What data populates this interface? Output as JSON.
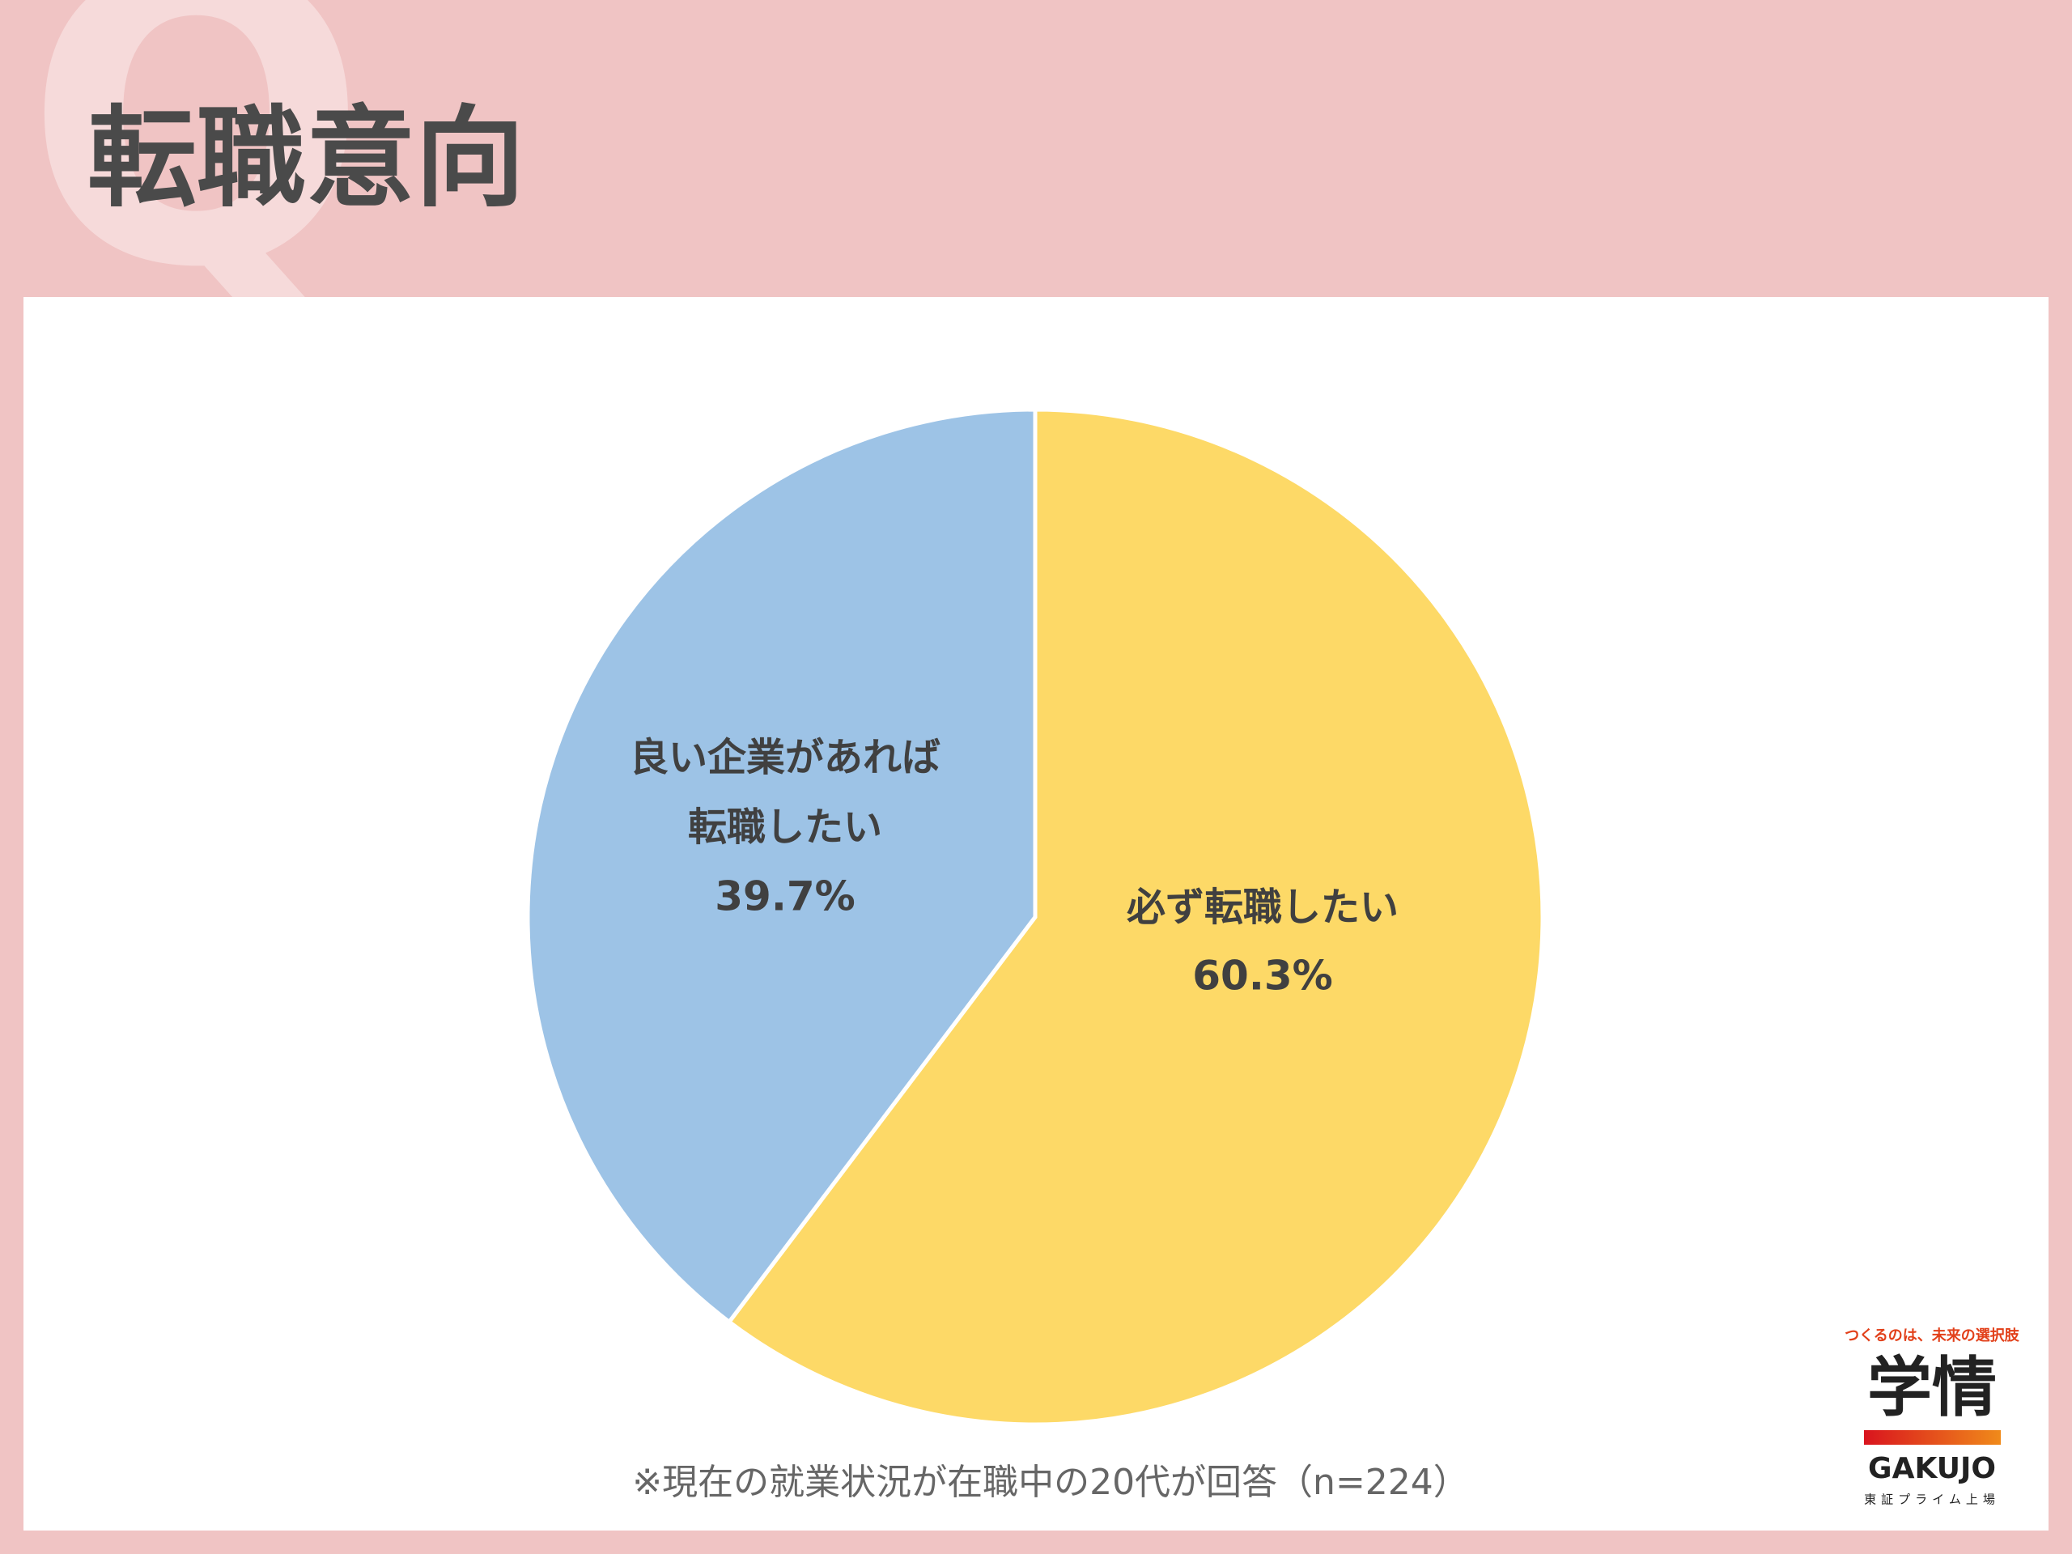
{
  "header": {
    "watermark": "Q",
    "title": "転職意向"
  },
  "chart_data": {
    "type": "pie",
    "categories": [
      [
        "必ず転職したい"
      ],
      [
        "良い企業があれば",
        "転職したい"
      ]
    ],
    "values": [
      60.3,
      39.7
    ],
    "value_labels": [
      "60.3%",
      "39.7%"
    ],
    "colors": [
      "#fdd967",
      "#9dc3e6"
    ],
    "note": "※現在の就業状況が在職中の20代が回答（n=224）"
  },
  "logo": {
    "tagline": "つくるのは、未来の選択肢",
    "name": "学情",
    "roman": "GAKUJO",
    "listing": "東証プライム上場"
  }
}
